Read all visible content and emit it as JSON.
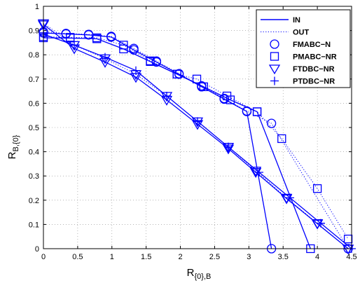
{
  "chart_data": {
    "type": "line",
    "xlabel": {
      "main": "R",
      "sub": "{0},B"
    },
    "ylabel": {
      "main": "R",
      "sub": "B,{0}"
    },
    "xlim": [
      0,
      4.5
    ],
    "ylim": [
      0,
      1
    ],
    "xticks": [
      0,
      0.5,
      1,
      1.5,
      2,
      2.5,
      3,
      3.5,
      4,
      4.5
    ],
    "xtick_labels": [
      "0",
      "0.5",
      "1",
      "1.5",
      "2",
      "2.5",
      "3",
      "3.5",
      "4",
      "4.5"
    ],
    "yticks": [
      0,
      0.1,
      0.2,
      0.3,
      0.4,
      0.5,
      0.6,
      0.7,
      0.8,
      0.9,
      1
    ],
    "ytick_labels": [
      "0",
      "0.1",
      "0.2",
      "0.3",
      "0.4",
      "0.5",
      "0.6",
      "0.7",
      "0.8",
      "0.9",
      "1"
    ],
    "grid": true,
    "legend_position": "top-right",
    "line_color": "#0000ff",
    "legend": [
      {
        "label": "IN",
        "style": "solid",
        "marker": "none"
      },
      {
        "label": "OUT",
        "style": "dotted",
        "marker": "none"
      },
      {
        "label": "FMABC−N",
        "style": "none",
        "marker": "circle"
      },
      {
        "label": "PMABC−NR",
        "style": "none",
        "marker": "square"
      },
      {
        "label": "FTDBC−NR",
        "style": "none",
        "marker": "triangle-down"
      },
      {
        "label": "PTDBC−NR",
        "style": "none",
        "marker": "plus"
      }
    ],
    "series": [
      {
        "label": "FMABC−N",
        "region": "IN",
        "style": "solid",
        "marker": "circle",
        "x": [
          0,
          0.33,
          0.66,
          0.99,
          1.32,
          1.65,
          1.98,
          2.31,
          2.64,
          2.97,
          3.33
        ],
        "y": [
          0.89,
          0.886,
          0.882,
          0.873,
          0.82,
          0.77,
          0.72,
          0.668,
          0.617,
          0.566,
          0
        ]
      },
      {
        "label": "FMABC−N",
        "region": "OUT",
        "style": "dotted",
        "marker": "circle",
        "x": [
          0,
          0.33,
          0.66,
          0.99,
          1.32,
          1.65,
          1.98,
          2.31,
          2.64,
          2.97,
          3.33,
          4.45
        ],
        "y": [
          0.895,
          0.888,
          0.884,
          0.876,
          0.826,
          0.774,
          0.722,
          0.672,
          0.62,
          0.568,
          0.517,
          0
        ]
      },
      {
        "label": "PMABC−NR",
        "region": "IN",
        "style": "solid",
        "marker": "square",
        "x": [
          0,
          0.39,
          0.78,
          1.17,
          1.56,
          1.95,
          2.34,
          2.73,
          3.12,
          3.9
        ],
        "y": [
          0.87,
          0.869,
          0.866,
          0.824,
          0.772,
          0.72,
          0.668,
          0.614,
          0.565,
          0
        ]
      },
      {
        "label": "PMABC−NR",
        "region": "OUT",
        "style": "dotted",
        "marker": "square",
        "x": [
          0,
          0.39,
          0.78,
          1.17,
          1.56,
          1.95,
          2.24,
          2.68,
          3.12,
          3.48,
          4.0,
          4.45
        ],
        "y": [
          0.875,
          0.872,
          0.87,
          0.84,
          0.775,
          0.72,
          0.7,
          0.63,
          0.565,
          0.454,
          0.248,
          0.04
        ]
      },
      {
        "label": "FTDBC−NR",
        "region": "IN",
        "style": "solid",
        "marker": "triangle-down",
        "x": [
          0,
          0.45,
          0.9,
          1.35,
          1.8,
          2.25,
          2.7,
          3.1,
          3.55,
          4.0,
          4.45
        ],
        "y": [
          0.925,
          0.826,
          0.77,
          0.708,
          0.614,
          0.514,
          0.413,
          0.316,
          0.207,
          0.103,
          0
        ]
      },
      {
        "label": "FTDBC−NR",
        "region": "OUT",
        "style": "dotted",
        "marker": "triangle-down",
        "x": [
          0,
          0.45,
          0.9,
          1.35,
          1.8,
          2.25,
          2.7,
          3.1,
          3.55,
          4.0,
          4.45
        ],
        "y": [
          0.93,
          0.84,
          0.785,
          0.72,
          0.63,
          0.525,
          0.42,
          0.322,
          0.21,
          0.105,
          0
        ]
      },
      {
        "label": "PTDBC−NR",
        "region": "IN",
        "style": "solid",
        "marker": "plus",
        "x": [
          0,
          0.45,
          0.9,
          1.35,
          1.8,
          2.25,
          2.7,
          3.15,
          3.6,
          4.05,
          4.5
        ],
        "y": [
          0.885,
          0.84,
          0.79,
          0.735,
          0.63,
          0.525,
          0.42,
          0.315,
          0.21,
          0.105,
          0
        ]
      }
    ]
  }
}
